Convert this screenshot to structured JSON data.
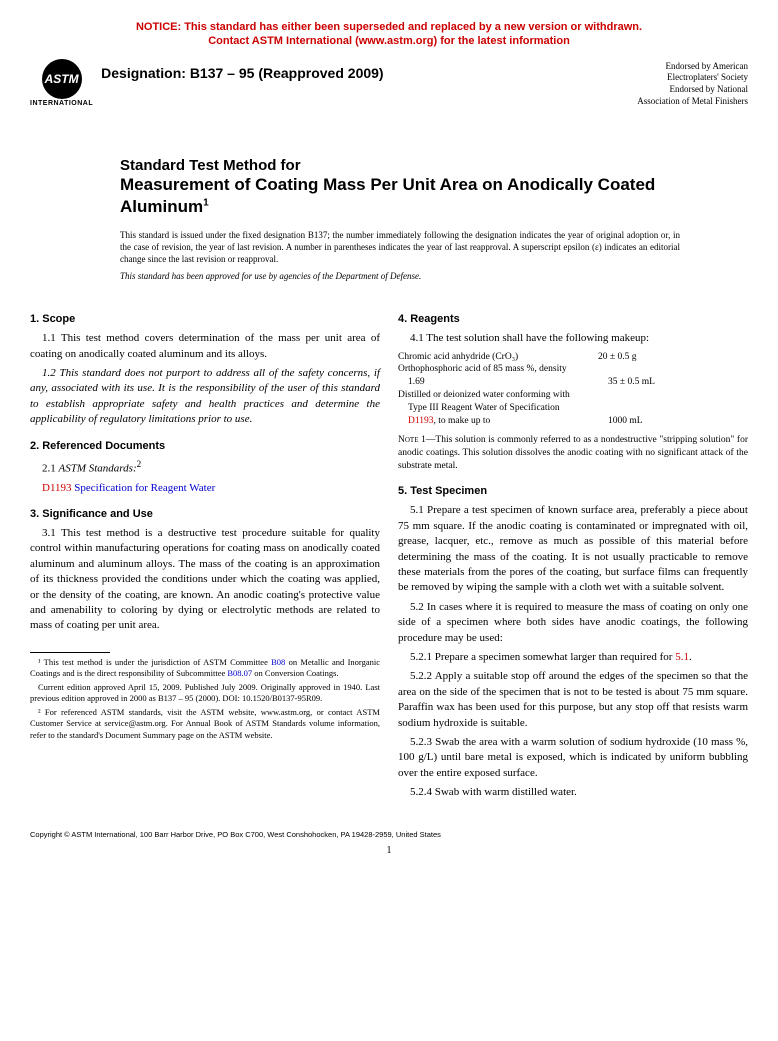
{
  "notice": {
    "line1": "NOTICE: This standard has either been superseded and replaced by a new version or withdrawn.",
    "line2": "Contact ASTM International (www.astm.org) for the latest information"
  },
  "header": {
    "logo_top": "ASTM",
    "logo_bottom": "INTERNATIONAL",
    "designation_label": "Designation: B137 – 95 (Reapproved 2009)",
    "endorsed": {
      "l1": "Endorsed by American",
      "l2": "Electroplaters' Society",
      "l3": "Endorsed by National",
      "l4": "Association of Metal Finishers"
    }
  },
  "title": {
    "pre": "Standard Test Method for",
    "main": "Measurement of Coating Mass Per Unit Area on Anodically Coated Aluminum",
    "sup": "1"
  },
  "issuance": "This standard is issued under the fixed designation B137; the number immediately following the designation indicates the year of original adoption or, in the case of revision, the year of last revision. A number in parentheses indicates the year of last reapproval. A superscript epsilon (ε) indicates an editorial change since the last revision or reapproval.",
  "approved_use": "This standard has been approved for use by agencies of the Department of Defense.",
  "sections": {
    "scope": {
      "head": "1. Scope",
      "p1": "1.1 This test method covers determination of the mass per unit area of coating on anodically coated aluminum and its alloys.",
      "p2": "1.2 This standard does not purport to address all of the safety concerns, if any, associated with its use. It is the responsibility of the user of this standard to establish appropriate safety and health practices and determine the applicability of regulatory limitations prior to use."
    },
    "refdocs": {
      "head": "2. Referenced Documents",
      "p1_pre": "2.1 ",
      "p1_link": "ASTM Standards:",
      "p1_sup": "2",
      "d1193_code": "D1193",
      "d1193_title": " Specification for Reagent Water"
    },
    "sig": {
      "head": "3. Significance and Use",
      "p1": "3.1 This test method is a destructive test procedure suitable for quality control within manufacturing operations for coating mass on anodically coated aluminum and aluminum alloys. The mass of the coating is an approximation of its thickness provided the conditions under which the coating was applied, or the density of the coating, are known. An anodic coating's protective value and amenability to coloring by dying or electrolytic methods are related to mass of coating per unit area."
    },
    "reagents": {
      "head": "4. Reagents",
      "intro": "4.1 The test solution shall have the following makeup:",
      "rows": {
        "r1_label": "Chromic acid anhydride (CrO₃)",
        "r1_val": "20 ± 0.5 g",
        "r2_label": "Orthophosphoric acid of 85 mass %, density",
        "r2_label2": "1.69",
        "r2_val": "35 ± 0.5 mL",
        "r3_label": "Distilled or deionized water conforming with",
        "r3_label2": "Type III Reagent Water of Specification",
        "r3_code": "D1193",
        "r3_label3": ", to make up to",
        "r3_val": "1000 mL"
      },
      "note": "—This solution is commonly referred to as a nondestructive \"stripping solution\" for anodic coatings. This solution dissolves the anodic coating with no significant attack of the substrate metal.",
      "note_label": "Note 1"
    },
    "specimen": {
      "head": "5. Test Specimen",
      "p1": "5.1 Prepare a test specimen of known surface area, preferably a piece about 75 mm square. If the anodic coating is contaminated or impregnated with oil, grease, lacquer, etc., remove as much as possible of this material before determining the mass of the coating. It is not usually practicable to remove these materials from the pores of the coating, but surface films can frequently be removed by wiping the sample with a cloth wet with a suitable solvent.",
      "p2": "5.2 In cases where it is required to measure the mass of coating on only one side of a specimen where both sides have anodic coatings, the following procedure may be used:",
      "p3_pre": "5.2.1 Prepare a specimen somewhat larger than required for ",
      "p3_link": "5.1",
      "p3_post": ".",
      "p4": "5.2.2 Apply a suitable stop off around the edges of the specimen so that the area on the side of the specimen that is not to be tested is about 75 mm square. Paraffin wax has been used for this purpose, but any stop off that resists warm sodium hydroxide is suitable.",
      "p5": "5.2.3 Swab the area with a warm solution of sodium hydroxide (10 mass %, 100 g/L) until bare metal is exposed, which is indicated by uniform bubbling over the entire exposed surface.",
      "p6": "5.2.4 Swab with warm distilled water."
    }
  },
  "footnotes": {
    "f1_pre": "¹ This test method is under the jurisdiction of ASTM Committee ",
    "f1_link1": "B08",
    "f1_mid": " on Metallic and Inorganic Coatings and is the direct responsibility of Subcommittee ",
    "f1_link2": "B08.07",
    "f1_post": " on Conversion Coatings.",
    "f1b": "Current edition approved April 15, 2009. Published July 2009. Originally approved in 1940. Last previous edition approved in 2000 as B137 – 95 (2000). DOI: 10.1520/B0137-95R09.",
    "f2": "² For referenced ASTM standards, visit the ASTM website, www.astm.org, or contact ASTM Customer Service at service@astm.org. For Annual Book of ASTM Standards volume information, refer to the standard's Document Summary page on the ASTM website."
  },
  "copyright": "Copyright © ASTM International, 100 Barr Harbor Drive, PO Box C700, West Conshohocken, PA 19428-2959, United States",
  "page_number": "1"
}
